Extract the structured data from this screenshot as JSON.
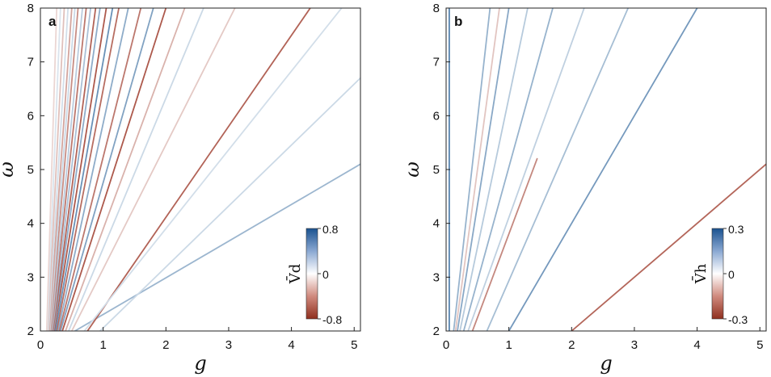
{
  "chart_data": [
    {
      "type": "heatmap",
      "panel_label": "a",
      "xlabel": "g",
      "ylabel": "ω",
      "xlim": [
        0,
        5.1
      ],
      "ylim": [
        2,
        8
      ],
      "xticks": [
        "0",
        "1",
        "2",
        "3",
        "4",
        "5"
      ],
      "yticks": [
        "2",
        "3",
        "4",
        "5",
        "6",
        "7",
        "8"
      ],
      "colorbar": {
        "label": "V̄d",
        "ticks": [
          "0.8",
          "0",
          "-0.8"
        ],
        "min": -0.8,
        "max": 0.8
      },
      "colors": {
        "positive": "#1f5a93",
        "negative": "#9b3424",
        "zero": "#ffffff"
      },
      "lines": [
        {
          "x": [
            0.55,
            5.1
          ],
          "y": [
            2,
            5.1
          ],
          "value": 0.25
        },
        {
          "x": [
            0.95,
            5.1
          ],
          "y": [
            2,
            6.7
          ],
          "value": 0.1
        },
        {
          "x": [
            0.75,
            4.3
          ],
          "y": [
            2,
            8
          ],
          "value": -0.55
        },
        {
          "x": [
            0.7,
            4.8
          ],
          "y": [
            2,
            8
          ],
          "value": 0.08
        },
        {
          "x": [
            0.5,
            3.1
          ],
          "y": [
            2,
            8
          ],
          "value": -0.12
        },
        {
          "x": [
            0.45,
            2.6
          ],
          "y": [
            2,
            8
          ],
          "value": 0.1
        },
        {
          "x": [
            0.4,
            2.3
          ],
          "y": [
            2,
            8
          ],
          "value": -0.2
        },
        {
          "x": [
            0.35,
            2.0
          ],
          "y": [
            2,
            8
          ],
          "value": -0.6
        },
        {
          "x": [
            0.32,
            1.8
          ],
          "y": [
            2,
            8
          ],
          "value": 0.35
        },
        {
          "x": [
            0.3,
            1.6
          ],
          "y": [
            2,
            8
          ],
          "value": -0.45
        },
        {
          "x": [
            0.28,
            1.4
          ],
          "y": [
            2,
            8
          ],
          "value": 0.3
        },
        {
          "x": [
            0.26,
            1.25
          ],
          "y": [
            2,
            8
          ],
          "value": -0.5
        },
        {
          "x": [
            0.24,
            1.15
          ],
          "y": [
            2,
            8
          ],
          "value": 0.45
        },
        {
          "x": [
            0.22,
            1.05
          ],
          "y": [
            2,
            8
          ],
          "value": -0.6
        },
        {
          "x": [
            0.21,
            0.95
          ],
          "y": [
            2,
            8
          ],
          "value": 0.3
        },
        {
          "x": [
            0.2,
            0.88
          ],
          "y": [
            2,
            8
          ],
          "value": -0.55
        },
        {
          "x": [
            0.19,
            0.8
          ],
          "y": [
            2,
            8
          ],
          "value": 0.2
        },
        {
          "x": [
            0.18,
            0.73
          ],
          "y": [
            2,
            8
          ],
          "value": -0.45
        },
        {
          "x": [
            0.17,
            0.67
          ],
          "y": [
            2,
            8
          ],
          "value": 0.15
        },
        {
          "x": [
            0.16,
            0.6
          ],
          "y": [
            2,
            8
          ],
          "value": -0.35
        },
        {
          "x": [
            0.15,
            0.55
          ],
          "y": [
            2,
            8
          ],
          "value": 0.1
        },
        {
          "x": [
            0.14,
            0.5
          ],
          "y": [
            2,
            8
          ],
          "value": -0.25
        },
        {
          "x": [
            0.13,
            0.44
          ],
          "y": [
            2,
            8
          ],
          "value": 0.08
        },
        {
          "x": [
            0.12,
            0.38
          ],
          "y": [
            2,
            8
          ],
          "value": -0.15
        },
        {
          "x": [
            0.11,
            0.32
          ],
          "y": [
            2,
            8
          ],
          "value": 0.06
        },
        {
          "x": [
            0.1,
            0.26
          ],
          "y": [
            2,
            8
          ],
          "value": -0.08
        }
      ]
    },
    {
      "type": "heatmap",
      "panel_label": "b",
      "xlabel": "g",
      "ylabel": "ω",
      "xlim": [
        0,
        5.1
      ],
      "ylim": [
        2,
        8
      ],
      "xticks": [
        "0",
        "1",
        "2",
        "3",
        "4",
        "5"
      ],
      "yticks": [
        "2",
        "3",
        "4",
        "5",
        "6",
        "7",
        "8"
      ],
      "colorbar": {
        "label": "V̄h",
        "ticks": [
          "0.3",
          "0",
          "-0.3"
        ],
        "min": -0.3,
        "max": 0.3
      },
      "colors": {
        "positive": "#1f5a93",
        "negative": "#9b3424",
        "zero": "#ffffff"
      },
      "lines": [
        {
          "x": [
            2.0,
            5.1
          ],
          "y": [
            2,
            5.1
          ],
          "value": -0.2
        },
        {
          "x": [
            1.0,
            4.0
          ],
          "y": [
            2,
            8
          ],
          "value": 0.15
        },
        {
          "x": [
            0.65,
            2.9
          ],
          "y": [
            2,
            8
          ],
          "value": 0.08
        },
        {
          "x": [
            0.42,
            1.45
          ],
          "y": [
            2,
            5.2
          ],
          "value": -0.14
        },
        {
          "x": [
            0.35,
            2.2
          ],
          "y": [
            2,
            8
          ],
          "value": 0.05
        },
        {
          "x": [
            0.28,
            1.7
          ],
          "y": [
            2,
            8
          ],
          "value": 0.1
        },
        {
          "x": [
            0.22,
            1.3
          ],
          "y": [
            2,
            8
          ],
          "value": 0.06
        },
        {
          "x": [
            0.18,
            1.0
          ],
          "y": [
            2,
            8
          ],
          "value": 0.12
        },
        {
          "x": [
            0.15,
            0.85
          ],
          "y": [
            2,
            8
          ],
          "value": -0.05
        },
        {
          "x": [
            0.12,
            0.7
          ],
          "y": [
            2,
            8
          ],
          "value": 0.1
        },
        {
          "x": [
            0.05,
            0.05
          ],
          "y": [
            2,
            8
          ],
          "value": 0.2
        }
      ]
    }
  ]
}
